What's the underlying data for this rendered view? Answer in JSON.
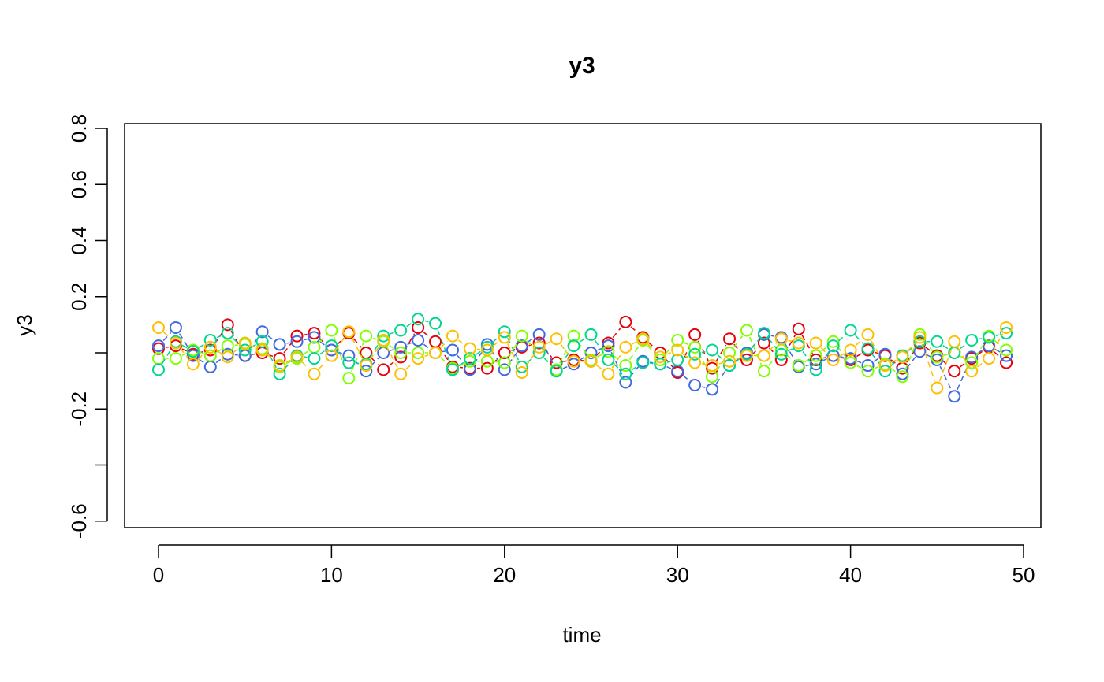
{
  "chart_data": {
    "type": "line",
    "title": "y3",
    "xlabel": "time",
    "ylabel": "y3",
    "xlim": [
      0,
      49
    ],
    "ylim": [
      -0.6,
      0.8
    ],
    "x_ticks": [
      0,
      10,
      20,
      30,
      40,
      50
    ],
    "x_tick_labels": [
      "0",
      "10",
      "20",
      "30",
      "40",
      "50"
    ],
    "y_ticks": [
      -0.6,
      -0.4,
      -0.2,
      0.0,
      0.2,
      0.4,
      0.6,
      0.8
    ],
    "y_tick_labels": [
      "-0.6",
      "",
      "-0.2",
      "",
      "0.2",
      "0.4",
      "0.6",
      "0.8"
    ],
    "grid": false,
    "marker": "open-circle",
    "x": [
      0,
      1,
      2,
      3,
      4,
      5,
      6,
      7,
      8,
      9,
      10,
      11,
      12,
      13,
      14,
      15,
      16,
      17,
      18,
      19,
      20,
      21,
      22,
      23,
      24,
      25,
      26,
      27,
      28,
      29,
      30,
      31,
      32,
      33,
      34,
      35,
      36,
      37,
      38,
      39,
      40,
      41,
      42,
      43,
      44,
      45,
      46,
      47,
      48,
      49
    ],
    "series": [
      {
        "color": "#e8000b",
        "values": [
          0.015,
          0.025,
          -0.005,
          0.01,
          0.1,
          -0.01,
          0.0,
          -0.02,
          0.06,
          0.07,
          0.01,
          0.07,
          0.0,
          -0.06,
          -0.015,
          0.09,
          0.04,
          -0.05,
          -0.055,
          -0.055,
          0.0,
          0.02,
          0.035,
          -0.035,
          -0.025,
          -0.03,
          0.035,
          0.11,
          0.055,
          0.0,
          -0.07,
          0.065,
          -0.055,
          0.05,
          -0.025,
          0.035,
          -0.025,
          0.085,
          -0.025,
          -0.01,
          -0.025,
          0.01,
          -0.01,
          -0.055,
          0.035,
          -0.01,
          -0.065,
          -0.02,
          0.02,
          -0.035
        ]
      },
      {
        "color": "#4169e1",
        "values": [
          0.025,
          0.09,
          -0.01,
          -0.05,
          -0.005,
          -0.01,
          0.075,
          0.03,
          0.04,
          0.055,
          0.01,
          -0.01,
          -0.065,
          0.0,
          0.02,
          0.045,
          0.0,
          0.01,
          -0.06,
          0.03,
          -0.06,
          0.025,
          0.065,
          -0.065,
          -0.04,
          0.0,
          0.025,
          -0.105,
          -0.03,
          -0.04,
          -0.065,
          -0.115,
          -0.13,
          -0.045,
          0.0,
          0.065,
          0.055,
          -0.05,
          -0.04,
          -0.01,
          -0.02,
          -0.045,
          -0.005,
          -0.075,
          0.005,
          -0.025,
          -0.155,
          -0.015,
          0.025,
          -0.01
        ]
      },
      {
        "color": "#7fff00",
        "values": [
          -0.02,
          -0.02,
          0.01,
          -0.01,
          0.025,
          0.03,
          0.015,
          -0.05,
          -0.02,
          0.02,
          0.08,
          -0.09,
          0.06,
          0.04,
          0.0,
          0.0,
          0.0,
          -0.055,
          -0.03,
          -0.03,
          -0.035,
          0.06,
          0.0,
          -0.06,
          0.06,
          -0.025,
          0.005,
          -0.045,
          0.045,
          -0.025,
          0.045,
          0.02,
          -0.085,
          0.0,
          0.08,
          -0.065,
          0.01,
          -0.045,
          -0.01,
          0.04,
          -0.035,
          -0.065,
          -0.04,
          -0.085,
          0.065,
          -0.015,
          0.0,
          -0.035,
          0.06,
          0.01
        ]
      },
      {
        "color": "#00d68f",
        "values": [
          -0.06,
          0.04,
          0.005,
          0.045,
          0.07,
          0.01,
          0.04,
          -0.075,
          -0.01,
          -0.02,
          0.025,
          -0.035,
          -0.04,
          0.06,
          0.08,
          0.12,
          0.105,
          -0.06,
          -0.02,
          0.02,
          0.075,
          -0.05,
          0.0,
          -0.065,
          0.025,
          0.065,
          -0.025,
          -0.075,
          -0.035,
          -0.04,
          -0.025,
          -0.005,
          0.01,
          -0.045,
          -0.005,
          0.07,
          -0.005,
          0.025,
          -0.06,
          0.025,
          0.08,
          0.015,
          -0.065,
          -0.01,
          0.04,
          0.04,
          0.0,
          0.045,
          0.055,
          0.07
        ]
      },
      {
        "color": "#ffbf00",
        "values": [
          0.09,
          0.035,
          -0.04,
          0.02,
          -0.015,
          0.035,
          0.01,
          -0.045,
          -0.015,
          -0.075,
          -0.01,
          0.075,
          -0.045,
          0.045,
          -0.075,
          -0.02,
          0.0,
          0.06,
          0.015,
          0.01,
          0.055,
          -0.07,
          0.02,
          0.05,
          -0.03,
          -0.03,
          -0.075,
          0.02,
          0.05,
          -0.015,
          0.01,
          -0.035,
          -0.045,
          -0.03,
          -0.01,
          -0.01,
          0.05,
          0.035,
          0.035,
          -0.025,
          0.01,
          0.065,
          -0.045,
          -0.015,
          0.055,
          -0.125,
          0.04,
          -0.065,
          -0.02,
          0.09
        ]
      }
    ]
  }
}
